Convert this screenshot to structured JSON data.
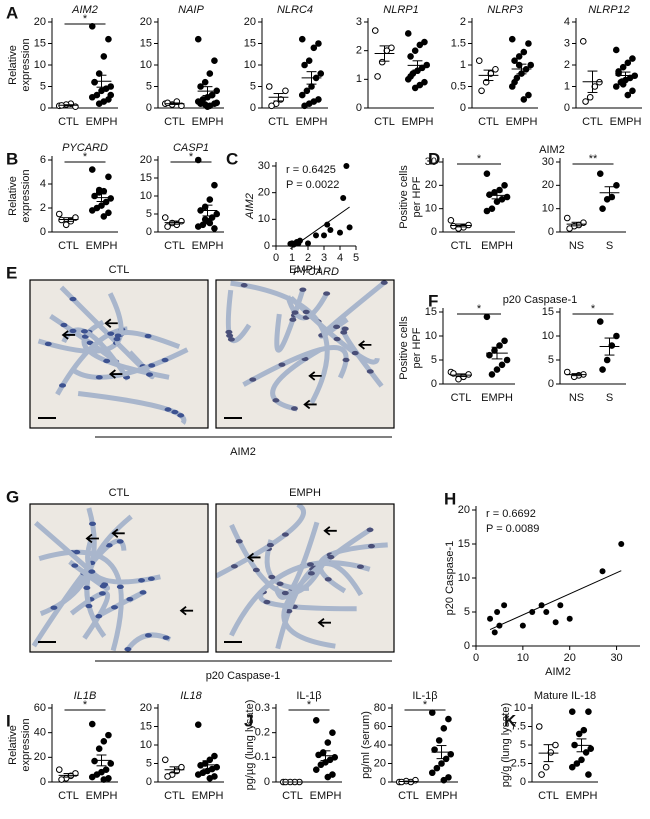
{
  "chart_data": [
    {
      "type": "dot",
      "panel": "A",
      "title": "AIM2",
      "title_italic": true,
      "ylabel": [
        "Relative",
        "expression"
      ],
      "ylim": [
        0,
        20
      ],
      "yticks": [
        0,
        5,
        10,
        15,
        20
      ],
      "significance": "*",
      "groups": [
        {
          "name": "CTL",
          "marker": "open",
          "values": [
            0.5,
            0.3,
            1,
            0.8,
            0.6
          ]
        },
        {
          "name": "EMPH",
          "marker": "filled",
          "values": [
            19,
            16,
            12,
            8,
            6,
            5,
            4.5,
            4,
            3,
            2.5,
            2,
            1.5,
            1,
            6,
            3
          ]
        }
      ]
    },
    {
      "type": "dot",
      "title": "NAIP",
      "title_italic": true,
      "ylim": [
        0,
        20
      ],
      "yticks": [
        0,
        5,
        10,
        15,
        20
      ],
      "groups": [
        {
          "name": "CTL",
          "marker": "open",
          "values": [
            1,
            0.5,
            1.5,
            0.8,
            1.2
          ]
        },
        {
          "name": "EMPH",
          "marker": "filled",
          "values": [
            16,
            11,
            8,
            6,
            5,
            4,
            3,
            2.5,
            2,
            1.5,
            1,
            0.5,
            0.8,
            1,
            1.2,
            3,
            0.3
          ]
        }
      ]
    },
    {
      "type": "dot",
      "title": "NLRC4",
      "title_italic": true,
      "ylim": [
        0,
        20
      ],
      "yticks": [
        0,
        5,
        10,
        15,
        20
      ],
      "groups": [
        {
          "name": "CTL",
          "marker": "open",
          "values": [
            5,
            4,
            2,
            1,
            0.5
          ]
        },
        {
          "name": "EMPH",
          "marker": "filled",
          "values": [
            16,
            15,
            14,
            11,
            10,
            8,
            7,
            5,
            4,
            3,
            2,
            1.5,
            1,
            0.5
          ]
        }
      ]
    },
    {
      "type": "dot",
      "title": "NLRP1",
      "title_italic": true,
      "ylim": [
        0,
        3
      ],
      "yticks": [
        0,
        1,
        2,
        3
      ],
      "groups": [
        {
          "name": "CTL",
          "marker": "open",
          "values": [
            2.7,
            2.1,
            2.0,
            1.6,
            1.1
          ]
        },
        {
          "name": "EMPH",
          "marker": "filled",
          "values": [
            2.6,
            2.3,
            2.2,
            2.0,
            1.8,
            1.5,
            1.4,
            1.3,
            1.2,
            1.0,
            0.9,
            0.8,
            0.7,
            1.1
          ]
        }
      ]
    },
    {
      "type": "dot",
      "title": "NLRP3",
      "title_italic": true,
      "ylim": [
        0,
        2
      ],
      "yticks": [
        0,
        0.5,
        1,
        1.5,
        2
      ],
      "groups": [
        {
          "name": "CTL",
          "marker": "open",
          "values": [
            1.1,
            0.9,
            0.8,
            0.6,
            0.4
          ]
        },
        {
          "name": "EMPH",
          "marker": "filled",
          "values": [
            1.6,
            1.5,
            1.3,
            1.2,
            1.1,
            1.0,
            0.9,
            0.8,
            0.7,
            0.5,
            0.3,
            0.2,
            1.0,
            0.6
          ]
        }
      ]
    },
    {
      "type": "dot",
      "title": "NLRP12",
      "title_italic": true,
      "ylim": [
        0,
        4
      ],
      "yticks": [
        0,
        1,
        2,
        3,
        4
      ],
      "groups": [
        {
          "name": "CTL",
          "marker": "open",
          "values": [
            3.1,
            1.2,
            1.0,
            0.5,
            0.3
          ]
        },
        {
          "name": "EMPH",
          "marker": "filled",
          "values": [
            2.7,
            2.3,
            2.1,
            1.9,
            1.7,
            1.5,
            1.4,
            1.3,
            1.2,
            1.0,
            0.8,
            0.6,
            1.1,
            1.6
          ]
        }
      ]
    },
    {
      "type": "dot",
      "panel": "B",
      "title": "PYCARD",
      "title_italic": true,
      "ylabel": [
        "Relative",
        "expression"
      ],
      "ylim": [
        0,
        6
      ],
      "yticks": [
        0,
        2,
        4,
        6
      ],
      "significance": "*",
      "groups": [
        {
          "name": "CTL",
          "marker": "open",
          "values": [
            1.5,
            1.2,
            0.9,
            0.6,
            1.0
          ]
        },
        {
          "name": "EMPH",
          "marker": "filled",
          "values": [
            5.2,
            4.6,
            3.4,
            3.3,
            3.0,
            2.8,
            2.5,
            2.2,
            2.0,
            1.8,
            1.6,
            1.3,
            3.5
          ]
        }
      ]
    },
    {
      "type": "dot",
      "title": "CASP1",
      "title_italic": true,
      "ylim": [
        0,
        20
      ],
      "yticks": [
        0,
        5,
        10,
        15,
        20
      ],
      "significance": "*",
      "groups": [
        {
          "name": "CTL",
          "marker": "open",
          "values": [
            4,
            3,
            2,
            2.5,
            1.5
          ]
        },
        {
          "name": "EMPH",
          "marker": "filled",
          "values": [
            20,
            13,
            9,
            7,
            6,
            5,
            4,
            3,
            2,
            1.5,
            1,
            2.5,
            3.5
          ]
        }
      ]
    },
    {
      "type": "scatter",
      "panel": "C",
      "xlabel": "PYCARD",
      "ylabel": "AIM2",
      "label_italic": true,
      "annotations": [
        "r = 0.6425",
        "P = 0.0022"
      ],
      "xlim": [
        0,
        5
      ],
      "xticks": [
        0,
        1,
        2,
        3,
        4,
        5
      ],
      "ylim": [
        0,
        30
      ],
      "yticks": [
        0,
        10,
        20,
        30
      ],
      "x": [
        1,
        1.1,
        1.2,
        1.3,
        0.9,
        1.4,
        1.5,
        2,
        2.5,
        3.2,
        3,
        3.4,
        4,
        4.2,
        4.4,
        4.6
      ],
      "y": [
        1,
        0.5,
        1,
        1.5,
        0.8,
        1,
        2,
        1,
        4,
        8,
        4,
        6,
        5,
        18,
        30,
        7
      ]
    },
    {
      "type": "dot",
      "panel": "D",
      "title": "AIM2",
      "ylabel": [
        "Positive cells",
        "per HPF"
      ],
      "ylim": [
        0,
        30
      ],
      "yticks": [
        0,
        10,
        20,
        30
      ],
      "significance": "*",
      "groups": [
        {
          "name": "CTL",
          "marker": "open",
          "values": [
            5,
            3,
            2,
            1.5,
            2.5
          ]
        },
        {
          "name": "EMPH",
          "marker": "filled",
          "values": [
            25,
            20,
            18,
            17,
            16,
            15,
            14,
            13,
            10,
            9
          ]
        }
      ]
    },
    {
      "type": "dot",
      "ylim": [
        0,
        30
      ],
      "yticks": [
        0,
        10,
        20,
        30
      ],
      "significance": "**",
      "groups": [
        {
          "name": "NS",
          "marker": "open",
          "values": [
            6,
            4,
            3,
            2.5,
            1.5
          ]
        },
        {
          "name": "S",
          "marker": "filled",
          "values": [
            25,
            20,
            15,
            14,
            10
          ]
        }
      ]
    },
    {
      "type": "dot",
      "panel": "F",
      "title": "p20 Caspase-1",
      "ylabel": [
        "Positive cells",
        "per HPF"
      ],
      "ylim": [
        0,
        15
      ],
      "yticks": [
        0,
        5,
        10,
        15
      ],
      "significance": "*",
      "groups": [
        {
          "name": "CTL",
          "marker": "open",
          "values": [
            2.5,
            2,
            1.5,
            1,
            2.2
          ]
        },
        {
          "name": "EMPH",
          "marker": "filled",
          "values": [
            14,
            9,
            8,
            7,
            6,
            5,
            4,
            3,
            2
          ]
        }
      ]
    },
    {
      "type": "dot",
      "ylim": [
        0,
        15
      ],
      "yticks": [
        0,
        5,
        10,
        15
      ],
      "significance": "*",
      "groups": [
        {
          "name": "NS",
          "marker": "open",
          "values": [
            2.5,
            2,
            1.8,
            1.5
          ]
        },
        {
          "name": "S",
          "marker": "filled",
          "values": [
            13,
            10,
            8,
            5,
            3
          ]
        }
      ]
    },
    {
      "type": "scatter",
      "panel": "H",
      "xlabel": "AIM2",
      "ylabel": "p20 Caspase-1",
      "label_italic": false,
      "annotations": [
        "r = 0.6692",
        "P = 0.0089"
      ],
      "xlim": [
        0,
        35
      ],
      "xticks": [
        0,
        10,
        20,
        30
      ],
      "ylim": [
        0,
        20
      ],
      "yticks": [
        0,
        5,
        10,
        15,
        20
      ],
      "x": [
        3,
        4,
        5,
        4.5,
        6,
        10,
        12,
        14,
        15,
        17,
        18,
        20,
        27,
        31
      ],
      "y": [
        4,
        2,
        3,
        5,
        6,
        3,
        5,
        6,
        5,
        3.5,
        6,
        4,
        11,
        15
      ]
    },
    {
      "type": "dot",
      "panel": "I",
      "title": "IL1B",
      "title_italic": true,
      "ylabel": [
        "Relative",
        "expression"
      ],
      "ylim": [
        0,
        60
      ],
      "yticks": [
        0,
        20,
        40,
        60
      ],
      "significance": "*",
      "groups": [
        {
          "name": "CTL",
          "marker": "open",
          "values": [
            10,
            7,
            5,
            3,
            2
          ]
        },
        {
          "name": "EMPH",
          "marker": "filled",
          "values": [
            47,
            38,
            33,
            27,
            17,
            15,
            10,
            8,
            6,
            4,
            3,
            2
          ]
        }
      ]
    },
    {
      "type": "dot",
      "title": "IL18",
      "title_italic": true,
      "ylim": [
        0,
        20
      ],
      "yticks": [
        0,
        5,
        10,
        15,
        20
      ],
      "groups": [
        {
          "name": "CTL",
          "marker": "open",
          "values": [
            6,
            4,
            3,
            2,
            1.5
          ]
        },
        {
          "name": "EMPH",
          "marker": "filled",
          "values": [
            15.5,
            7,
            6,
            5,
            4.5,
            4,
            3.5,
            3,
            2.5,
            2,
            1.5,
            1
          ]
        }
      ]
    },
    {
      "type": "dot",
      "panel": "J",
      "title": "IL-1β",
      "ylabel": [
        "pg/µg (lung lysate)"
      ],
      "ylim": [
        0,
        0.3
      ],
      "yticks": [
        0,
        0.1,
        0.2,
        0.3
      ],
      "significance": "*",
      "groups": [
        {
          "name": "CTL",
          "marker": "open",
          "values": [
            0,
            0,
            0,
            0,
            0
          ]
        },
        {
          "name": "EMPH",
          "marker": "filled",
          "values": [
            0.25,
            0.2,
            0.16,
            0.12,
            0.11,
            0.1,
            0.09,
            0.08,
            0.07,
            0.05,
            0.03,
            0.02
          ]
        }
      ]
    },
    {
      "type": "dot",
      "title": "IL-1β",
      "ylabel": [
        "pg/ml (serum)"
      ],
      "ylim": [
        0,
        80
      ],
      "yticks": [
        0,
        20,
        40,
        60,
        80
      ],
      "significance": "*",
      "groups": [
        {
          "name": "CTL",
          "marker": "open",
          "values": [
            0,
            2,
            0,
            1,
            0
          ]
        },
        {
          "name": "EMPH",
          "marker": "filled",
          "values": [
            75,
            68,
            58,
            45,
            35,
            30,
            25,
            20,
            15,
            10,
            5,
            2
          ]
        }
      ]
    },
    {
      "type": "dot",
      "panel": "K",
      "title": "Mature IL-18",
      "ylabel": [
        "pg/g (lung lysate)"
      ],
      "ylim": [
        0,
        10
      ],
      "yticks": [
        0,
        2.5,
        5,
        7.5,
        10
      ],
      "groups": [
        {
          "name": "CTL",
          "marker": "open",
          "values": [
            7.5,
            5,
            4,
            2,
            1
          ]
        },
        {
          "name": "EMPH",
          "marker": "filled",
          "values": [
            9.5,
            9.5,
            7,
            6.5,
            5,
            4.5,
            4,
            3,
            2.5,
            2,
            1
          ]
        }
      ]
    }
  ],
  "micrographs": [
    {
      "panel": "E",
      "captions": [
        "CTL",
        "EMPH"
      ],
      "label": "AIM2"
    },
    {
      "panel": "G",
      "captions": [
        "CTL",
        "EMPH"
      ],
      "label": "p20 Caspase-1"
    }
  ]
}
